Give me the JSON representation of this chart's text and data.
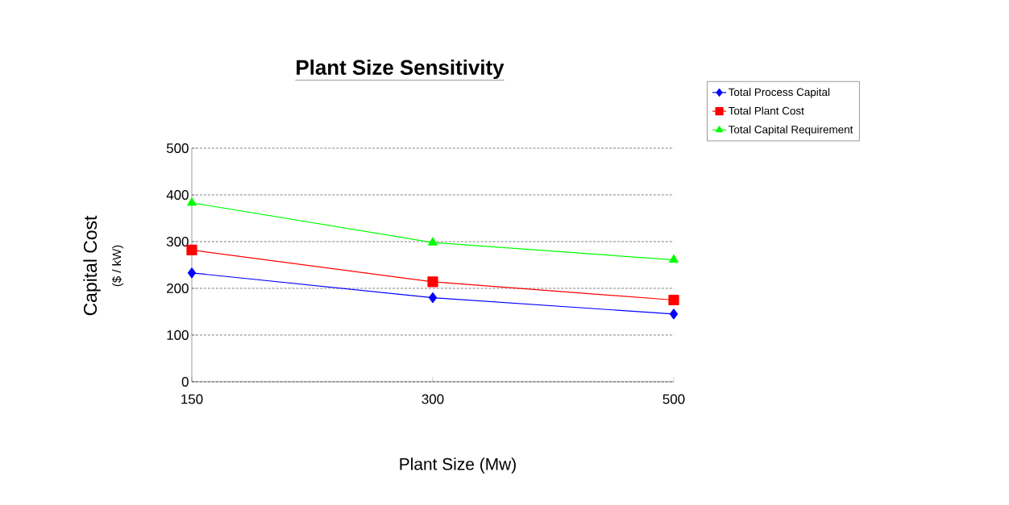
{
  "chart_data": {
    "type": "line",
    "title": "Plant Size Sensitivity",
    "xlabel": "Plant Size (Mw)",
    "ylabel": "Capital Cost",
    "annotations": [
      "($ / kW)"
    ],
    "categories": [
      "150",
      "300",
      "500"
    ],
    "series": [
      {
        "name": "Total Process Capital",
        "color": "#0000ff",
        "marker": "diamond",
        "values": [
          233,
          180,
          145
        ]
      },
      {
        "name": "Total Plant Cost",
        "color": "#ff0000",
        "marker": "square",
        "values": [
          282,
          214,
          175
        ]
      },
      {
        "name": "Total Capital Requirement",
        "color": "#00ff00",
        "marker": "triangle",
        "values": [
          383,
          298,
          261
        ]
      }
    ],
    "ylim": [
      0,
      500
    ],
    "yticks": [
      0,
      100,
      200,
      300,
      400,
      500
    ],
    "grid": "y",
    "legend": "top right",
    "line_style": "solid"
  }
}
